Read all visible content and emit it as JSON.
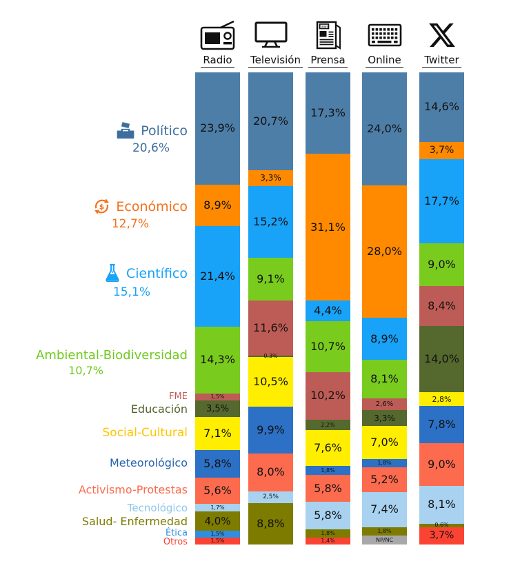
{
  "chart_data": {
    "type": "bar",
    "subtype": "stacked-100",
    "unit": "%",
    "ylim": [
      0,
      100
    ],
    "columns": [
      {
        "name": "Radio",
        "icon": "radio-icon"
      },
      {
        "name": "Televisión",
        "icon": "tv-icon"
      },
      {
        "name": "Prensa",
        "icon": "newspaper-icon"
      },
      {
        "name": "Online",
        "icon": "keyboard-icon"
      },
      {
        "name": "Twitter",
        "icon": "x-icon"
      }
    ],
    "categories": [
      {
        "name": "Político",
        "avg": "20,6%",
        "color": "#4D7EA8",
        "text_color": "#3E6E9E"
      },
      {
        "name": "Económico",
        "avg": "12,7%",
        "color": "#FF8A00",
        "text_color": "#F4701B"
      },
      {
        "name": "Científico",
        "avg": "15,1%",
        "color": "#18A2F8",
        "text_color": "#18A2F8"
      },
      {
        "name": "Ambiental-Biodiversidad",
        "avg": "10,7%",
        "color": "#79CC1E",
        "text_color": "#6FC91E"
      },
      {
        "name": "FME",
        "color": "#BD5C56",
        "text_color": "#C25B54"
      },
      {
        "name": "Educación",
        "color": "#55682D",
        "text_color": "#50602A"
      },
      {
        "name": "Social-Cultural",
        "color": "#FFEE00",
        "text_color": "#FDC500"
      },
      {
        "name": "Meteorológico",
        "color": "#2C71C5",
        "text_color": "#2763AE"
      },
      {
        "name": "Activismo-Protestas",
        "color": "#FC6B4E",
        "text_color": "#FB6B4E"
      },
      {
        "name": "Tecnológico",
        "color": "#A8D2F0",
        "text_color": "#8FC6EC"
      },
      {
        "name": "Salud- Enfermedad",
        "color": "#7D7C00",
        "text_color": "#7D7C00"
      },
      {
        "name": "Ética",
        "color": "#2F8EE0",
        "text_color": "#2F8EE0"
      },
      {
        "name": "Otros",
        "color": "#FB4334",
        "text_color": "#FB4334"
      },
      {
        "name": "NP/NC",
        "color": "#A8A8A8",
        "text_color": "#444444"
      }
    ],
    "series": [
      {
        "column": "Radio",
        "segments": [
          {
            "category": "Político",
            "value": 23.9,
            "label": "23,9%"
          },
          {
            "category": "Económico",
            "value": 8.9,
            "label": "8,9%"
          },
          {
            "category": "Científico",
            "value": 21.4,
            "label": "21,4%"
          },
          {
            "category": "Ambiental-Biodiversidad",
            "value": 14.3,
            "label": "14,3%"
          },
          {
            "category": "FME",
            "value": 1.5,
            "label": "1,5%"
          },
          {
            "category": "Educación",
            "value": 3.5,
            "label": "3,5%"
          },
          {
            "category": "Social-Cultural",
            "value": 7.1,
            "label": "7,1%"
          },
          {
            "category": "Meteorológico",
            "value": 5.8,
            "label": "5,8%"
          },
          {
            "category": "Activismo-Protestas",
            "value": 5.6,
            "label": "5,6%"
          },
          {
            "category": "Tecnológico",
            "value": 1.7,
            "label": "1,7%"
          },
          {
            "category": "Salud- Enfermedad",
            "value": 4.0,
            "label": "4,0%"
          },
          {
            "category": "Ética",
            "value": 1.5,
            "label": "1,5%"
          },
          {
            "category": "Otros",
            "value": 1.5,
            "label": "1,5%"
          }
        ]
      },
      {
        "column": "Televisión",
        "segments": [
          {
            "category": "Político",
            "value": 20.7,
            "label": "20,7%"
          },
          {
            "category": "Económico",
            "value": 3.3,
            "label": "3,3%"
          },
          {
            "category": "Científico",
            "value": 15.2,
            "label": "15,2%"
          },
          {
            "category": "Ambiental-Biodiversidad",
            "value": 9.1,
            "label": "9,1%"
          },
          {
            "category": "FME",
            "value": 11.6,
            "label": "11,6%"
          },
          {
            "category": "Educación",
            "value": 0.3,
            "label": "0,3%"
          },
          {
            "category": "Social-Cultural",
            "value": 10.5,
            "label": "10,5%"
          },
          {
            "category": "Meteorológico",
            "value": 9.9,
            "label": "9,9%"
          },
          {
            "category": "Activismo-Protestas",
            "value": 8.0,
            "label": "8,0%"
          },
          {
            "category": "Tecnológico",
            "value": 2.5,
            "label": "2,5%"
          },
          {
            "category": "Salud- Enfermedad",
            "value": 8.8,
            "label": "8,8%"
          }
        ]
      },
      {
        "column": "Prensa",
        "segments": [
          {
            "category": "Político",
            "value": 17.3,
            "label": "17,3%"
          },
          {
            "category": "Económico",
            "value": 31.1,
            "label": "31,1%"
          },
          {
            "category": "Científico",
            "value": 4.4,
            "label": "4,4%"
          },
          {
            "category": "Ambiental-Biodiversidad",
            "value": 10.7,
            "label": "10,7%"
          },
          {
            "category": "FME",
            "value": 10.2,
            "label": "10,2%"
          },
          {
            "category": "Educación",
            "value": 2.2,
            "label": "2,2%"
          },
          {
            "category": "Social-Cultural",
            "value": 7.6,
            "label": "7,6%"
          },
          {
            "category": "Meteorológico",
            "value": 1.8,
            "label": "1,8%"
          },
          {
            "category": "Activismo-Protestas",
            "value": 5.8,
            "label": "5,8%"
          },
          {
            "category": "Tecnológico",
            "value": 5.8,
            "label": "5,8%"
          },
          {
            "category": "Salud- Enfermedad",
            "value": 1.8,
            "label": "1,8%"
          },
          {
            "category": "Otros",
            "value": 1.4,
            "label": "1,4%"
          }
        ]
      },
      {
        "column": "Online",
        "segments": [
          {
            "category": "Político",
            "value": 24.0,
            "label": "24,0%"
          },
          {
            "category": "Económico",
            "value": 28.0,
            "label": "28,0%"
          },
          {
            "category": "Científico",
            "value": 8.9,
            "label": "8,9%"
          },
          {
            "category": "Ambiental-Biodiversidad",
            "value": 8.1,
            "label": "8,1%"
          },
          {
            "category": "FME",
            "value": 2.6,
            "label": "2,6%"
          },
          {
            "category": "Educación",
            "value": 3.3,
            "label": "3,3%"
          },
          {
            "category": "Social-Cultural",
            "value": 7.0,
            "label": "7,0%"
          },
          {
            "category": "Meteorológico",
            "value": 1.8,
            "label": "1,8%"
          },
          {
            "category": "Activismo-Protestas",
            "value": 5.2,
            "label": "5,2%"
          },
          {
            "category": "Tecnológico",
            "value": 7.4,
            "label": "7,4%"
          },
          {
            "category": "Salud- Enfermedad",
            "value": 1.8,
            "label": "1,8%"
          },
          {
            "category": "NP/NC",
            "value": 1.9,
            "label": "NP/NC"
          }
        ]
      },
      {
        "column": "Twitter",
        "segments": [
          {
            "category": "Político",
            "value": 14.6,
            "label": "14,6%"
          },
          {
            "category": "Económico",
            "value": 3.7,
            "label": "3,7%"
          },
          {
            "category": "Científico",
            "value": 17.7,
            "label": "17,7%"
          },
          {
            "category": "Ambiental-Biodiversidad",
            "value": 9.0,
            "label": "9,0%"
          },
          {
            "category": "FME",
            "value": 8.4,
            "label": "8,4%"
          },
          {
            "category": "Educación",
            "value": 14.0,
            "label": "14,0%"
          },
          {
            "category": "Social-Cultural",
            "value": 2.8,
            "label": "2,8%"
          },
          {
            "category": "Meteorológico",
            "value": 7.8,
            "label": "7,8%"
          },
          {
            "category": "Activismo-Protestas",
            "value": 9.0,
            "label": "9,0%"
          },
          {
            "category": "Tecnológico",
            "value": 8.1,
            "label": "8,1%"
          },
          {
            "category": "Salud- Enfermedad",
            "value": 0.6,
            "label": "0,6%"
          },
          {
            "category": "Otros",
            "value": 3.7,
            "label": "3,7%"
          }
        ]
      }
    ]
  }
}
